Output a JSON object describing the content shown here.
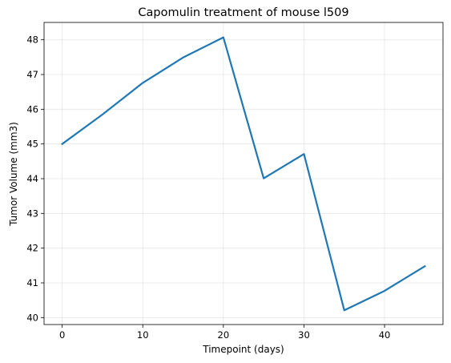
{
  "chart_data": {
    "type": "line",
    "title": "Capomulin treatment of mouse l509",
    "xlabel": "Timepoint (days)",
    "ylabel": "Tumor Volume (mm3)",
    "x": [
      0,
      5,
      10,
      15,
      20,
      25,
      30,
      35,
      40,
      45
    ],
    "series": [
      {
        "values": [
          45.0,
          45.85,
          46.76,
          47.49,
          48.07,
          44.01,
          44.71,
          40.21,
          40.77,
          41.48
        ],
        "color": "#1f77b4"
      }
    ],
    "xlim": [
      -2.25,
      47.25
    ],
    "ylim": [
      39.8,
      48.5
    ],
    "xticks": [
      0,
      10,
      20,
      30,
      40
    ],
    "yticks": [
      40,
      41,
      42,
      43,
      44,
      45,
      46,
      47,
      48
    ],
    "grid": true,
    "legend": false
  }
}
